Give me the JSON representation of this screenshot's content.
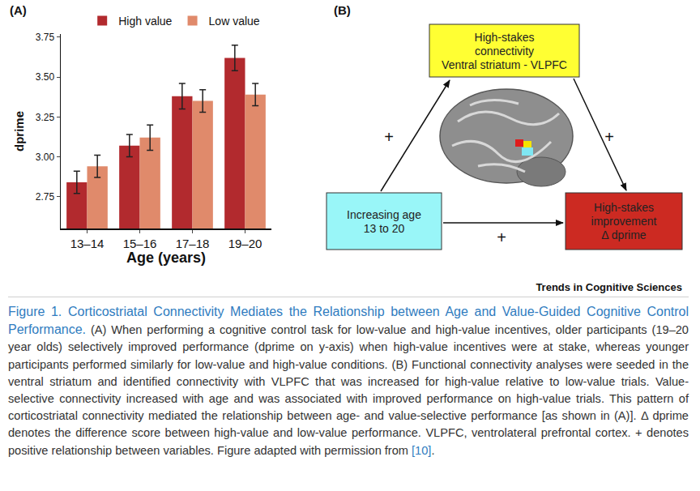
{
  "chart_data": {
    "type": "bar",
    "label": "(A)",
    "categories": [
      "13–14",
      "15–16",
      "17–18",
      "19–20"
    ],
    "series": [
      {
        "name": "High value",
        "color": "#b22a2e",
        "values": [
          2.84,
          3.07,
          3.38,
          3.62
        ],
        "errors": [
          0.07,
          0.07,
          0.08,
          0.08
        ]
      },
      {
        "name": "Low value",
        "color": "#e08a6b",
        "values": [
          2.94,
          3.12,
          3.35,
          3.39
        ],
        "errors": [
          0.07,
          0.08,
          0.07,
          0.07
        ]
      }
    ],
    "x_label": "Age (years)",
    "y_label": "dprime",
    "ylim": [
      2.55,
      3.77
    ],
    "yticks": [
      2.75,
      {
        "value": 3,
        "label": "3.00"
      },
      3.25,
      {
        "value": 3.5,
        "label": "3.50"
      },
      3.75
    ],
    "grid": false,
    "legend": "top"
  },
  "diagram": {
    "label": "(B)",
    "nodes": [
      {
        "lines": [
          "High-stakes",
          "connectivity",
          "Ventral striatum - VLPFC"
        ],
        "color": "#ffff33"
      },
      {
        "lines": [
          "Increasing age",
          "13 to 20"
        ],
        "color": "#99f6f8"
      },
      {
        "lines": [
          "High-stakes",
          "improvement",
          "Δ dprime"
        ],
        "color": "#cc2a22"
      }
    ],
    "edges": [
      {
        "from": 1,
        "to": 0,
        "label": "+"
      },
      {
        "from": 0,
        "to": 2,
        "label": "+"
      },
      {
        "from": 1,
        "to": 2,
        "label": "+"
      }
    ]
  },
  "source": "Trends in Cognitive Sciences",
  "caption": {
    "title": "Figure 1. Corticostriatal Connectivity Mediates the Relationship between Age and Value-Guided Cognitive Control Performance.",
    "body": "(A) When performing a cognitive control task for low-value and high-value incentives, older participants (19–20 year olds) selectively improved performance (dprime on y-axis) when high-value incentives were at stake, whereas younger participants performed similarly for low-value and high-value conditions. (B) Functional connectivity analyses were seeded in the ventral striatum and identified connectivity with VLPFC that was increased for high-value relative to low-value trials. Value-selective connectivity increased with age and was associated with improved performance on high-value trials. This pattern of corticostriatal connectivity mediated the relationship between age- and value-selective performance [as shown in (A)]. Δ dprime denotes the difference score between high-value and low-value performance. VLPFC, ventrolateral prefrontal cortex. + denotes positive relationship between variables. Figure adapted with permission from",
    "ref": "[10]",
    "end": "."
  }
}
